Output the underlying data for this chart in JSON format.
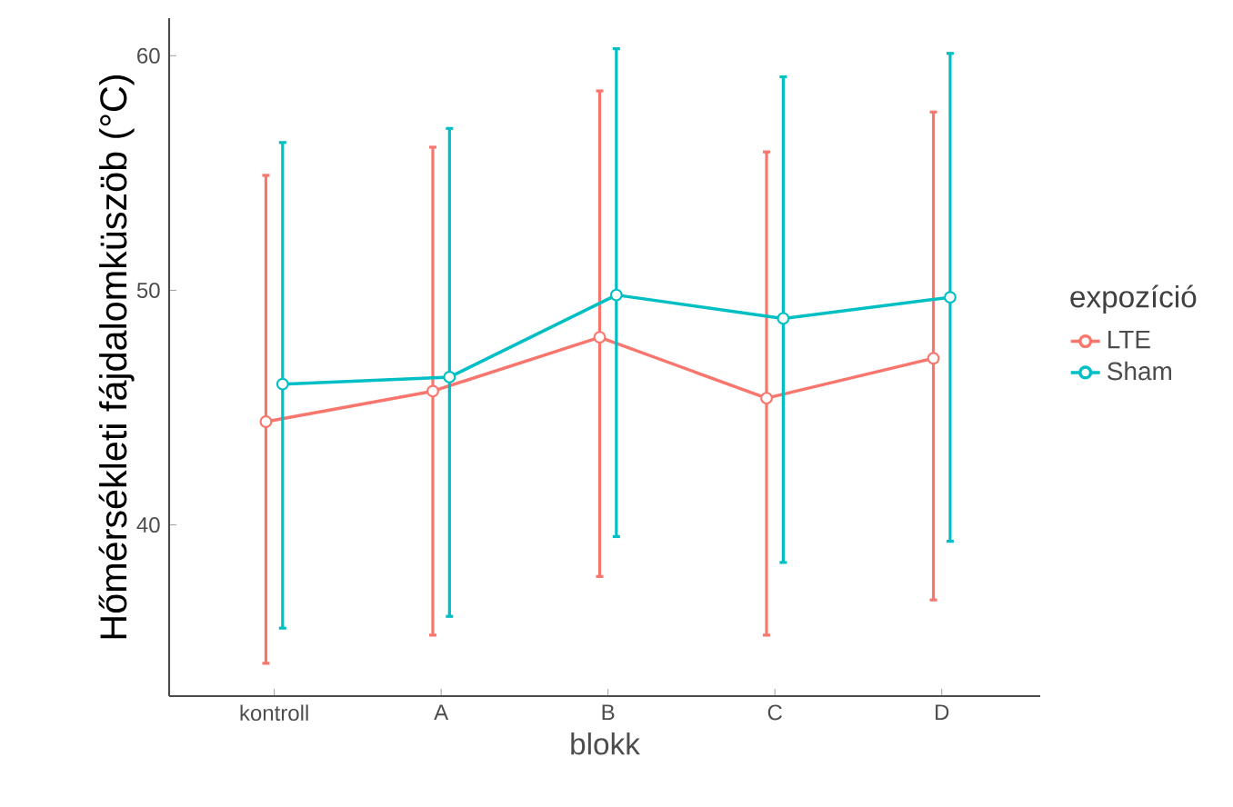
{
  "chart_data": {
    "type": "line",
    "xlabel": "blokk",
    "ylabel": "Hőmérsékleti fájdalomküszöb (°C)",
    "legend_title": "expozíció",
    "categories": [
      "kontroll",
      "A",
      "B",
      "C",
      "D"
    ],
    "ylim": [
      32.7,
      61.6
    ],
    "yticks": [
      40,
      50,
      60
    ],
    "grid": false,
    "legend": "right",
    "marker": "circle",
    "line_style": "solid",
    "series": [
      {
        "name": "LTE",
        "color": "#f8766d",
        "values": [
          44.4,
          45.7,
          48.0,
          45.4,
          47.1
        ],
        "errors": [
          [
            34.1,
            54.9
          ],
          [
            35.3,
            56.1
          ],
          [
            37.8,
            58.5
          ],
          [
            35.3,
            55.9
          ],
          [
            36.8,
            57.6
          ]
        ]
      },
      {
        "name": "Sham",
        "color": "#00bfc4",
        "values": [
          46.0,
          46.3,
          49.8,
          48.8,
          49.7
        ],
        "errors": [
          [
            35.6,
            56.3
          ],
          [
            36.1,
            56.9
          ],
          [
            39.5,
            60.3
          ],
          [
            38.4,
            59.1
          ],
          [
            39.3,
            60.1
          ]
        ]
      }
    ]
  }
}
